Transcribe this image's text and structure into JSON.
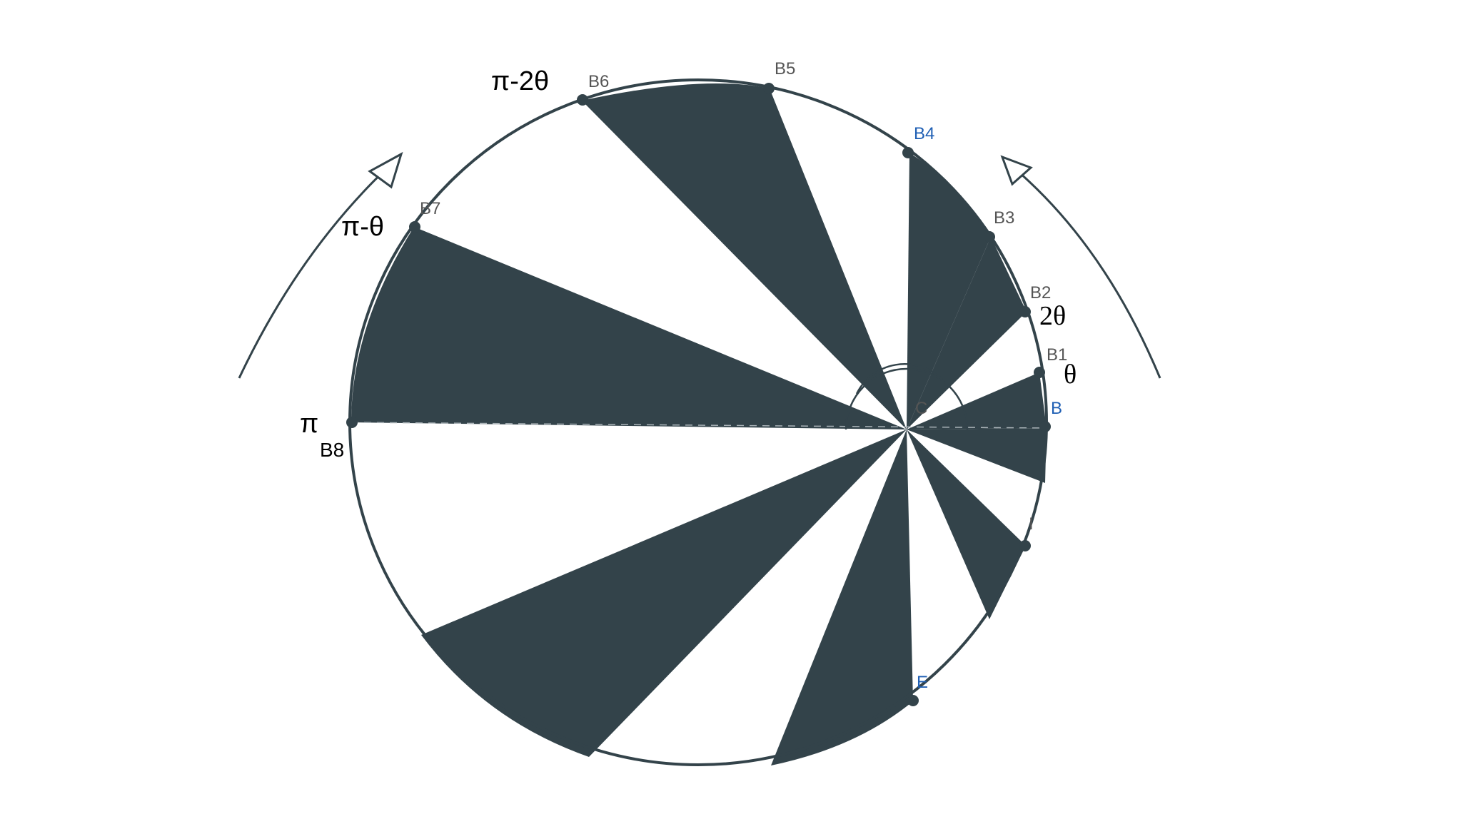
{
  "colors": {
    "fill": "#33434a",
    "stroke": "#33434a",
    "blue": "#1f5fb4",
    "gray": "#555555"
  },
  "points": {
    "B": "B",
    "B1": "B1",
    "B2": "B2",
    "B3": "B3",
    "B4": "B4",
    "B5": "B5",
    "B6": "B6",
    "B7": "B7",
    "B8": "B8",
    "E": "E",
    "C": "C",
    "I": "I"
  },
  "angle_labels": {
    "theta": "θ",
    "two_theta": "2θ",
    "pi_minus_theta": "π-θ",
    "pi_minus_two_theta": "π-2θ",
    "pi": "π"
  }
}
